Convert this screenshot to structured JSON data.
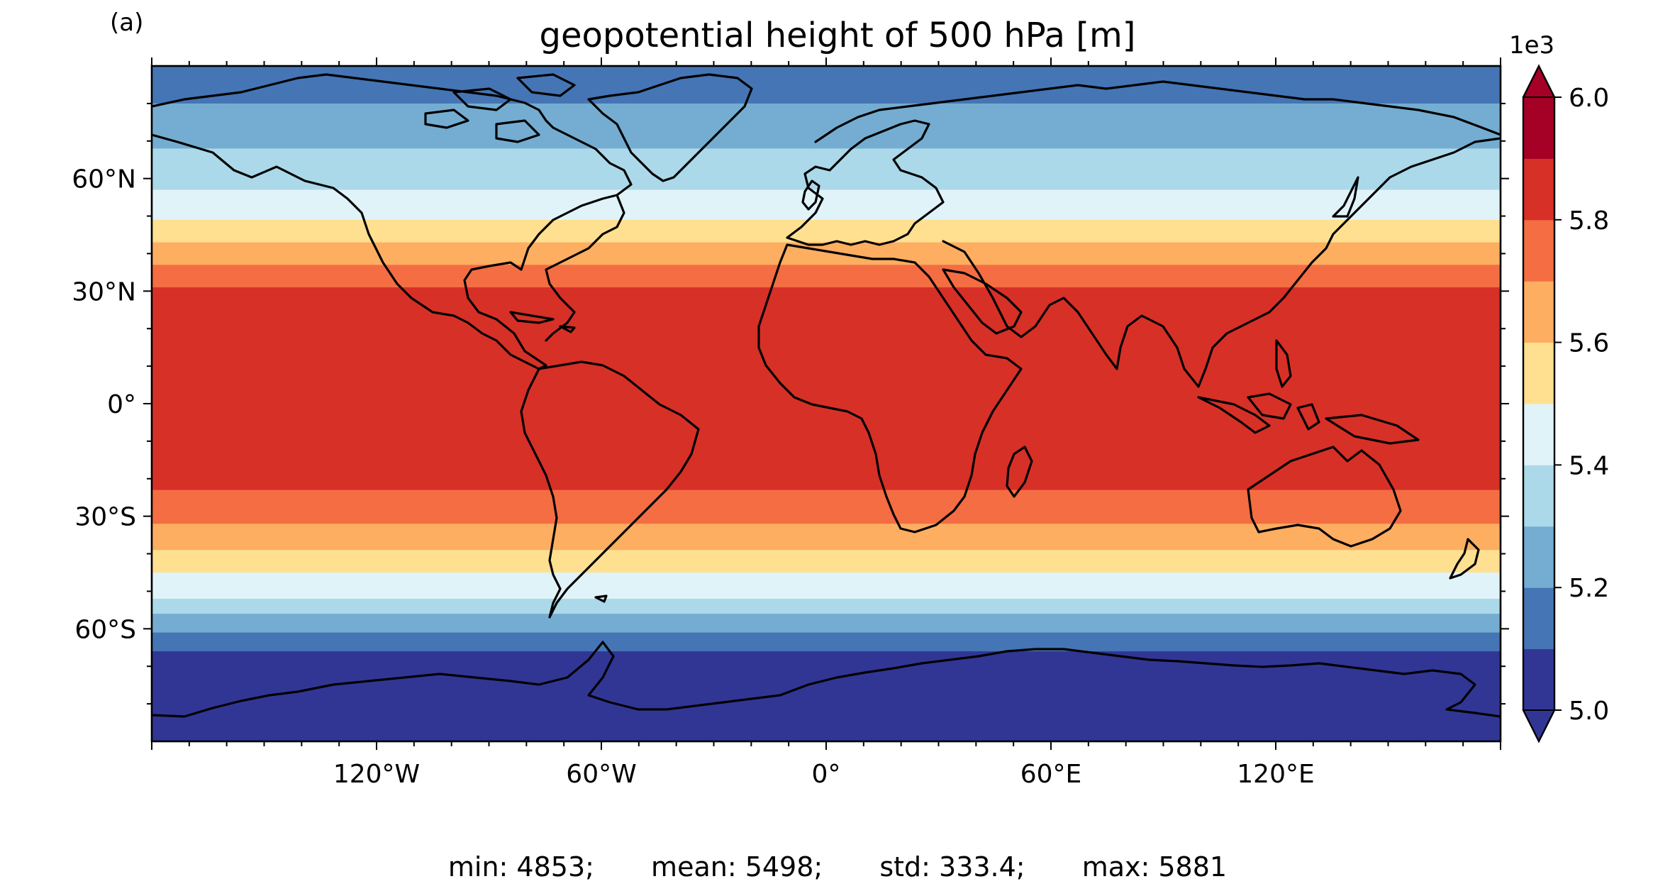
{
  "panel_label": "(a)",
  "title": "geopotential height of 500 hPa [m]",
  "colorbar": {
    "exponent_label": "1e3",
    "ticks": [
      "6.0",
      "5.8",
      "5.6",
      "5.4",
      "5.2",
      "5.0"
    ],
    "tick_values": [
      6.0,
      5.8,
      5.6,
      5.4,
      5.2,
      5.0
    ],
    "range": [
      5.0,
      6.0
    ],
    "step": 0.1,
    "extend": "both",
    "colors": [
      "#313695",
      "#4575b4",
      "#74add1",
      "#abd9e9",
      "#e0f3f8",
      "#fee090",
      "#fdae61",
      "#f46d43",
      "#d73027",
      "#a50026"
    ],
    "under_color": "#313695",
    "over_color": "#a50026"
  },
  "axes": {
    "lat_ticks": [
      "60°N",
      "30°N",
      "0°",
      "30°S",
      "60°S"
    ],
    "lat_values": [
      60,
      30,
      0,
      -30,
      -60
    ],
    "lon_ticks": [
      "120°W",
      "60°W",
      "0°",
      "60°E",
      "120°E"
    ],
    "lon_values": [
      -120,
      -60,
      0,
      60,
      120
    ],
    "lat_range": [
      -90,
      90
    ],
    "lon_range": [
      -180,
      180
    ]
  },
  "stats": {
    "min": "min: 4853;",
    "mean": "mean: 5498;",
    "std": "std: 333.4;",
    "max": "max: 5881"
  },
  "chart_data": {
    "type": "heatmap",
    "title": "geopotential height of 500 hPa [m]",
    "variable": "geopotential height of 500 hPa",
    "units": "m",
    "projection": "equirectangular",
    "zonal_profile": {
      "lat": [
        90,
        80,
        70,
        62,
        55,
        48,
        42,
        36,
        30,
        20,
        10,
        0,
        -10,
        -20,
        -26,
        -32,
        -38,
        -44,
        -50,
        -55,
        -60,
        -64,
        -68,
        -72,
        -80,
        -90
      ],
      "value": [
        5150,
        5200,
        5280,
        5350,
        5420,
        5520,
        5620,
        5720,
        5820,
        5840,
        5850,
        5850,
        5850,
        5840,
        5760,
        5700,
        5620,
        5520,
        5430,
        5330,
        5220,
        5130,
        5060,
        4980,
        4950,
        4950
      ]
    },
    "summary": {
      "min": 4853,
      "mean": 5498,
      "std": 333.4,
      "max": 5881
    }
  }
}
